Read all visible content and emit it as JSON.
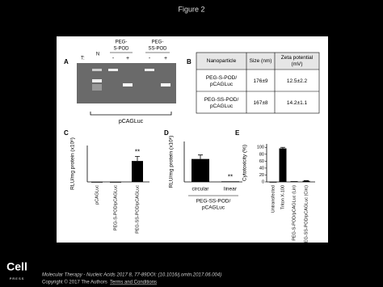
{
  "title": "Figure 2",
  "panel_a": {
    "label": "A",
    "treatment_label": "T:",
    "lanes": [
      "N",
      [
        "PEG-",
        "S-POD"
      ],
      [
        "PEG-",
        "SS-POD"
      ]
    ],
    "treatments": [
      "-",
      "+",
      "-",
      "+"
    ],
    "caption": "pCAGLuc"
  },
  "table": {
    "label": "B",
    "header": [
      "Nanoparticle",
      "Size (nm)",
      [
        "Zeta potential",
        "(mV)"
      ]
    ],
    "rows": [
      [
        [
          "PEG-S-POD/",
          "pCAGLuc"
        ],
        "176±9",
        "12.5±2.2"
      ],
      [
        [
          "PEG-SS-POD/",
          "pCAGLuc"
        ],
        "167±8",
        "14.2±1.1"
      ]
    ]
  },
  "chart_data": [
    {
      "type": "bar",
      "panel_label": "C",
      "y_label": "RLU/mg protein (x10⁶)",
      "categories": [
        "pCAGLuc",
        "PEG-S-POD/pCAGLuc",
        "PEG-SS-POD/pCAGLuc"
      ],
      "values": [
        0,
        0,
        2.3
      ],
      "errors": [
        0,
        0,
        0.5
      ],
      "color": "#000000",
      "ylim": [
        0,
        4
      ],
      "annotation": "**"
    },
    {
      "type": "bar",
      "panel_label": "D",
      "y_label": "RLU/mg protein (x10⁶)",
      "x_label": [
        "PEG-SS-POD/",
        "pCAGLuc"
      ],
      "categories": [
        "circular",
        "linear"
      ],
      "values": [
        0.85,
        0.02
      ],
      "errors": [
        0.15,
        0
      ],
      "color": "#000000",
      "ylim": [
        0,
        1.5
      ],
      "annotation": "**"
    },
    {
      "type": "bar",
      "panel_label": "E",
      "y_label": "Cytotoxicity (%)",
      "categories": [
        "Untransfected",
        "Triton X-100",
        "PEG-S-POD/pCAGLuc (Lin)",
        "PEG-SS-POD/pCAGLuc (Circ)"
      ],
      "values": [
        0,
        97,
        2,
        3
      ],
      "errors": [
        0,
        3,
        0,
        1
      ],
      "color": "#000000",
      "ylim": [
        0,
        110
      ],
      "yticks": [
        0,
        20,
        40,
        60,
        80,
        100
      ]
    }
  ],
  "footer": {
    "logo": "Cell",
    "logo_sub": "PRESS",
    "citation": "Molecular Therapy - Nucleic Acids 2017 8, 77-89DOI: (10.1016/j.omtn.2017.06.004)",
    "copyright": "Copyright © 2017 The Authors",
    "link": "Terms and Conditions"
  }
}
